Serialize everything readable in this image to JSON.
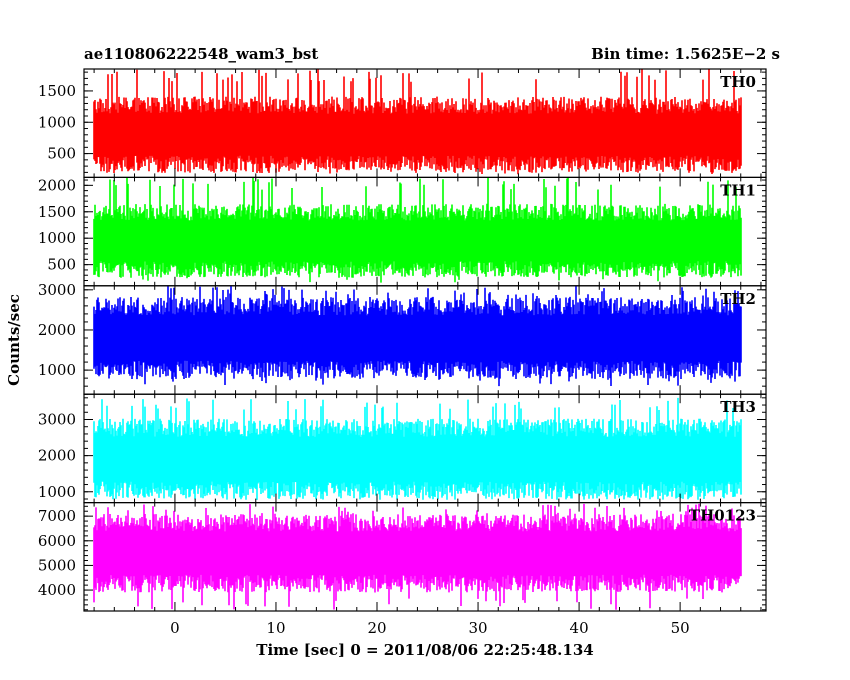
{
  "header": {
    "title": "ae110806222548_wam3_bst",
    "bin_time": "Bin time: 1.5625E−2 s"
  },
  "chart_data": {
    "type": "line",
    "title": "ae110806222548_wam3_bst",
    "subtitle": "Bin time: 1.5625E−2 s",
    "xlabel": "Time [sec] 0 = 2011/08/06 22:25:48.134",
    "ylabel": "Counts/sec",
    "xlim": [
      -9,
      58.5
    ],
    "x_ticks": [
      0,
      10,
      20,
      30,
      40,
      50
    ],
    "x_range": [
      -8,
      56
    ],
    "bin_time": 0.015625,
    "grid": false,
    "panels": [
      {
        "name": "TH0",
        "color": "#ff0000",
        "ylim": [
          120,
          1850
        ],
        "y_ticks": [
          500,
          1000,
          1500
        ],
        "baseline": 800,
        "typical_range": [
          280,
          1500
        ],
        "max": 1850,
        "min": 150
      },
      {
        "name": "TH1",
        "color": "#00ff00",
        "ylim": [
          100,
          2150
        ],
        "y_ticks": [
          500,
          1000,
          1500,
          2000
        ],
        "baseline": 950,
        "typical_range": [
          300,
          1700
        ],
        "max": 2150,
        "min": 150
      },
      {
        "name": "TH2",
        "color": "#0000ff",
        "ylim": [
          400,
          3100
        ],
        "y_ticks": [
          1000,
          2000,
          3000
        ],
        "baseline": 1800,
        "typical_range": [
          750,
          2800
        ],
        "max": 3100,
        "min": 600
      },
      {
        "name": "TH3",
        "color": "#00ffff",
        "ylim": [
          700,
          3700
        ],
        "y_ticks": [
          1000,
          2000,
          3000
        ],
        "baseline": 1900,
        "typical_range": [
          950,
          3200
        ],
        "max": 3600,
        "min": 850
      },
      {
        "name": "TH0123",
        "color": "#ff00ff",
        "ylim": [
          3150,
          7550
        ],
        "y_ticks": [
          4000,
          5000,
          6000,
          7000
        ],
        "baseline": 5500,
        "typical_range": [
          3800,
          7000
        ],
        "max": 7500,
        "min": 3200
      }
    ]
  }
}
